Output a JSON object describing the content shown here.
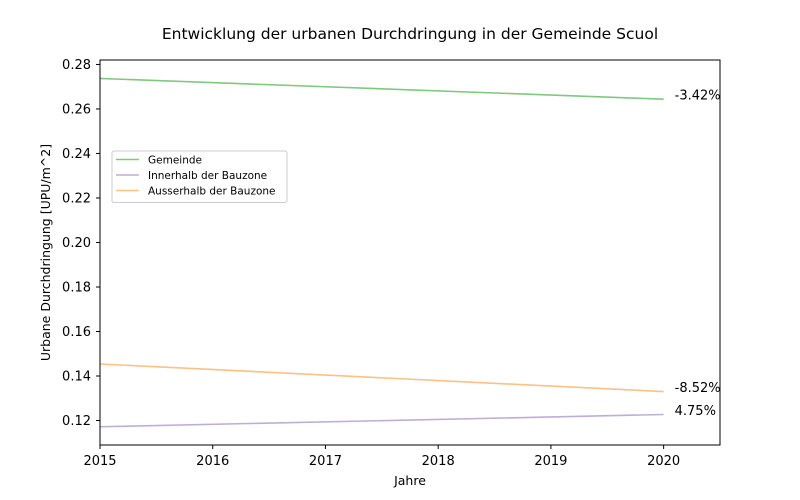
{
  "chart_data": {
    "type": "line",
    "title": "Entwicklung der urbanen Durchdringung in der Gemeinde Scuol",
    "xlabel": "Jahre",
    "ylabel": "Urbane Durchdringung [UPU/m^2]",
    "x": [
      2015,
      2020
    ],
    "xlim": [
      2015,
      2020.5
    ],
    "ylim": [
      0.109,
      0.282
    ],
    "xticks": [
      2015,
      2016,
      2017,
      2018,
      2019,
      2020
    ],
    "xtick_labels": [
      "2015",
      "2016",
      "2017",
      "2018",
      "2019",
      "2020"
    ],
    "yticks": [
      0.12,
      0.14,
      0.16,
      0.18,
      0.2,
      0.22,
      0.24,
      0.26,
      0.28
    ],
    "ytick_labels": [
      "0.12",
      "0.14",
      "0.16",
      "0.18",
      "0.20",
      "0.22",
      "0.24",
      "0.26",
      "0.28"
    ],
    "grid": false,
    "legend_position": "center-left",
    "series": [
      {
        "name": "Gemeinde",
        "values": [
          0.2737,
          0.2644
        ],
        "color": "#7fc97f",
        "end_label": "-3.42%"
      },
      {
        "name": "Innerhalb der Bauzone",
        "values": [
          0.1172,
          0.1227
        ],
        "color": "#beaed4",
        "end_label": "4.75%"
      },
      {
        "name": "Ausserhalb der Bauzone",
        "values": [
          0.1454,
          0.133
        ],
        "color": "#fdc086",
        "end_label": "-8.52%"
      }
    ]
  }
}
